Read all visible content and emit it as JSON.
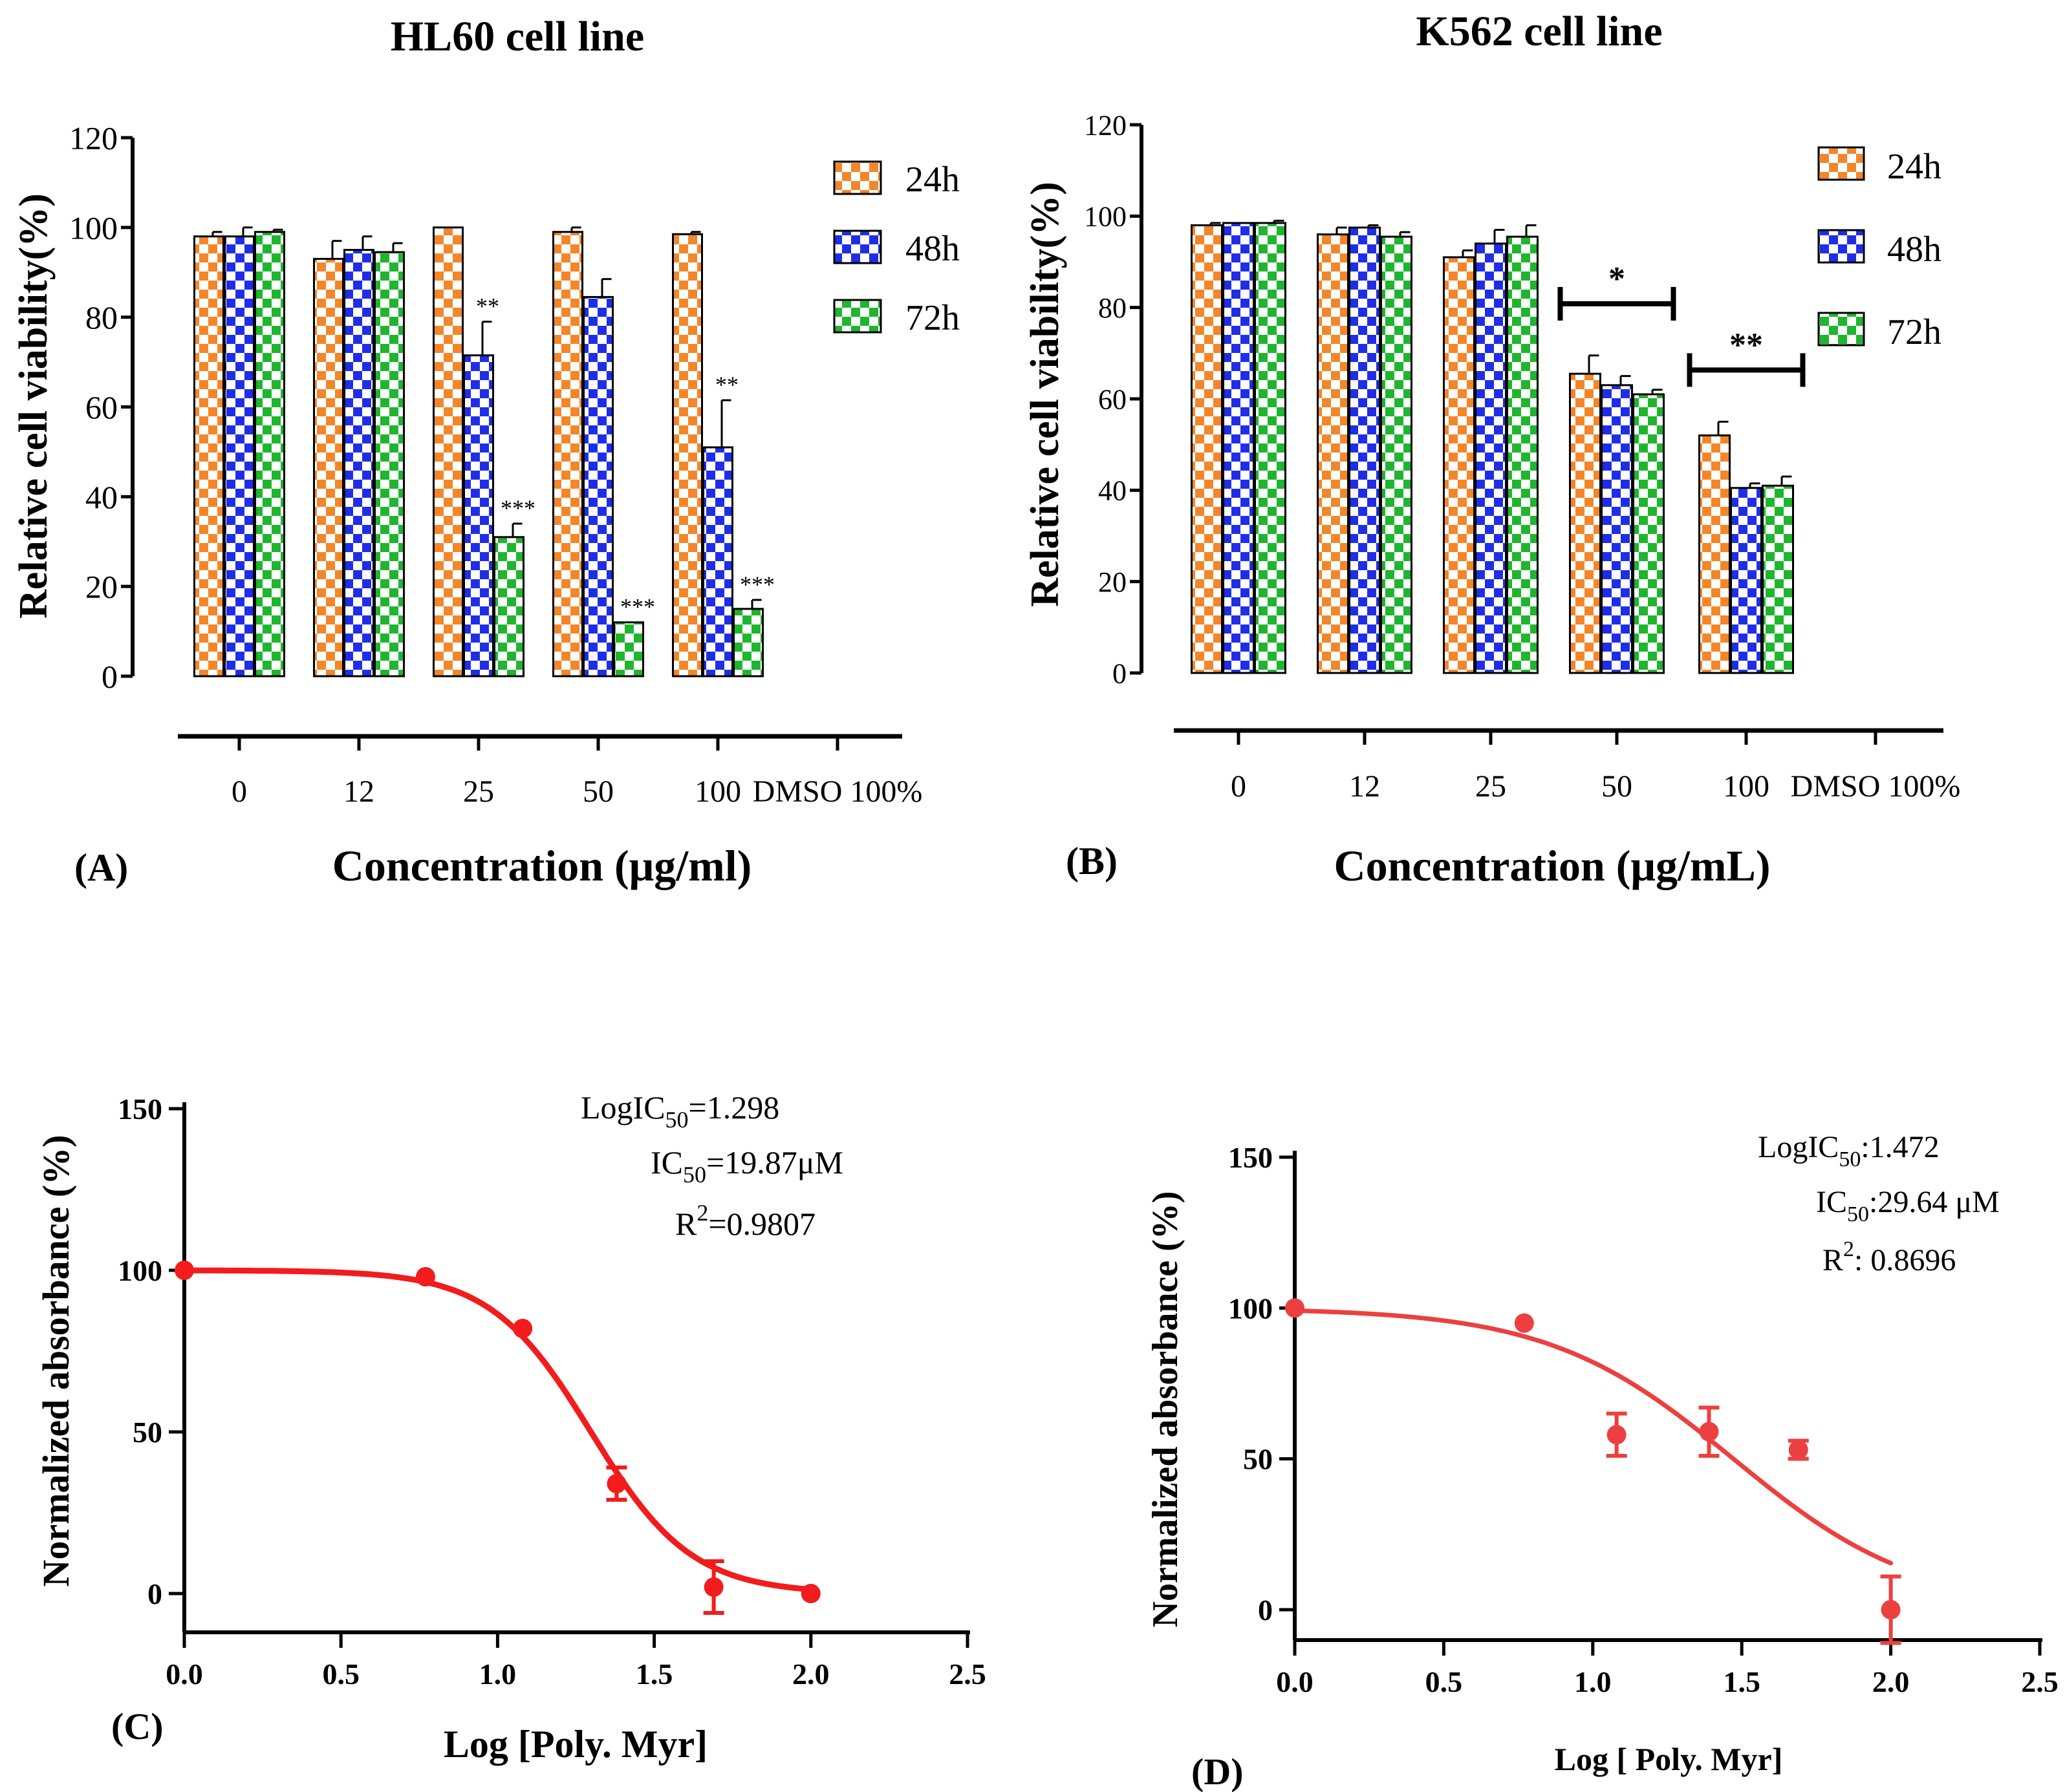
{
  "figure": {
    "panels": [
      "(A)",
      "(B)",
      "(C)",
      "(D)"
    ]
  },
  "colors": {
    "h24": "#f4862a",
    "h48": "#1f2ee6",
    "h72": "#1fb52e",
    "curve": "#f21c1c",
    "curve_d": "#ec4040",
    "axis": "#000000"
  },
  "chart_data": [
    {
      "type": "bar",
      "panel": "(A)",
      "title": "HL60 cell line",
      "xlabel": "Concentration  (μg/ml)",
      "ylabel": "Relative cell viability(%)",
      "ylim": [
        0,
        120
      ],
      "yticks": [
        "0",
        "20",
        "40",
        "60",
        "80",
        "100",
        "120"
      ],
      "categories": [
        "0",
        "12",
        "25",
        "50",
        "100",
        "DMSO 100%"
      ],
      "legend": [
        "24h",
        "48h",
        "72h"
      ],
      "series": [
        {
          "name": "24h",
          "values": [
            98,
            93,
            100,
            99,
            98.5,
            null
          ],
          "errors": [
            1,
            4,
            0,
            1,
            0.5,
            null
          ]
        },
        {
          "name": "48h",
          "values": [
            98,
            95,
            71.5,
            84.5,
            51,
            null
          ],
          "errors": [
            2,
            3,
            7.5,
            4,
            10.5,
            null
          ]
        },
        {
          "name": "72h",
          "values": [
            99,
            94.5,
            31,
            12,
            15,
            null
          ],
          "errors": [
            0.5,
            2,
            3,
            0,
            2,
            null
          ]
        }
      ],
      "annotations": [
        {
          "category": "25",
          "series": "48h",
          "text": "**"
        },
        {
          "category": "25",
          "series": "72h",
          "text": "***"
        },
        {
          "category": "50",
          "series": "72h",
          "text": "***"
        },
        {
          "category": "100",
          "series": "48h",
          "text": "**"
        },
        {
          "category": "100",
          "series": "72h",
          "text": "***"
        }
      ]
    },
    {
      "type": "bar",
      "panel": "(B)",
      "title": "K562 cell line",
      "xlabel": "Concentration (μg/mL)",
      "ylabel": "Relative cell viability(%)",
      "ylim": [
        0,
        120
      ],
      "yticks": [
        "0",
        "20",
        "40",
        "60",
        "80",
        "100",
        "120"
      ],
      "categories": [
        "0",
        "12",
        "25",
        "50",
        "100",
        "DMSO 100%"
      ],
      "legend": [
        "24h",
        "48h",
        "72h"
      ],
      "series": [
        {
          "name": "24h",
          "values": [
            98,
            96,
            91,
            65.5,
            52,
            null
          ],
          "errors": [
            0.5,
            1.5,
            1.5,
            4,
            3,
            null
          ]
        },
        {
          "name": "48h",
          "values": [
            98.5,
            97.5,
            94,
            63,
            40.5,
            null
          ],
          "errors": [
            0,
            0.5,
            3,
            2,
            1,
            null
          ]
        },
        {
          "name": "72h",
          "values": [
            98.5,
            95.5,
            95.5,
            61,
            41,
            null
          ],
          "errors": [
            0.5,
            1,
            2.5,
            1,
            2,
            null
          ]
        }
      ],
      "annotations": [
        {
          "category": "50",
          "text": "*"
        },
        {
          "category": "100",
          "text": "**"
        }
      ]
    },
    {
      "type": "scatter",
      "panel": "(C)",
      "xlabel": "Log [Poly. Myr]",
      "ylabel": "Normalized absorbance (%)",
      "xlim": [
        0,
        2.5
      ],
      "ylim": [
        -10,
        150
      ],
      "xticks": [
        "0.0",
        "0.5",
        "1.0",
        "1.5",
        "2.0",
        "2.5"
      ],
      "yticks": [
        "0",
        "50",
        "100",
        "150"
      ],
      "points": {
        "x": [
          0,
          0.77,
          1.08,
          1.38,
          1.69,
          2.0
        ],
        "y": [
          100,
          98,
          82,
          34,
          2,
          0
        ],
        "err": [
          0,
          0,
          0,
          5,
          8,
          0
        ]
      },
      "fit": {
        "top": 100,
        "bottom": 0,
        "logIC50": 1.298,
        "hill": -2.7,
        "x_range": [
          0,
          2.0
        ]
      },
      "annotations": {
        "line1_pre": "LogIC",
        "line1_sub": "50",
        "line1_post": "=1.298",
        "line2_pre": "IC",
        "line2_sub": "50",
        "line2_post": "=19.87μM",
        "line3_pre": "R",
        "line3_sup": "2",
        "line3_post": "=0.9807"
      }
    },
    {
      "type": "scatter",
      "panel": "(D)",
      "xlabel": "Log [ Poly. Myr]",
      "ylabel": "Normalized absorbance (%)",
      "xlim": [
        0,
        2.5
      ],
      "ylim": [
        -10,
        150
      ],
      "xticks": [
        "0.0",
        "0.5",
        "1.0",
        "1.5",
        "2.0",
        "2.5"
      ],
      "yticks": [
        "0",
        "50",
        "100",
        "150"
      ],
      "points": {
        "x": [
          0,
          0.77,
          1.08,
          1.39,
          1.69,
          2.0
        ],
        "y": [
          100,
          95,
          58,
          59,
          53,
          0
        ],
        "err": [
          0,
          0,
          7,
          8,
          3,
          11
        ]
      },
      "fit": {
        "top": 100,
        "bottom": 0,
        "logIC50": 1.472,
        "hill": -1.4,
        "x_range": [
          0,
          2.0
        ]
      },
      "annotations": {
        "line1_pre": "LogIC",
        "line1_sub": "50",
        "line1_post": ":1.472",
        "line2_pre": "IC",
        "line2_sub": "50",
        "line2_post": ":29.64 μM",
        "line3_pre": "R",
        "line3_sup": "2",
        "line3_post": ": 0.8696"
      }
    }
  ]
}
